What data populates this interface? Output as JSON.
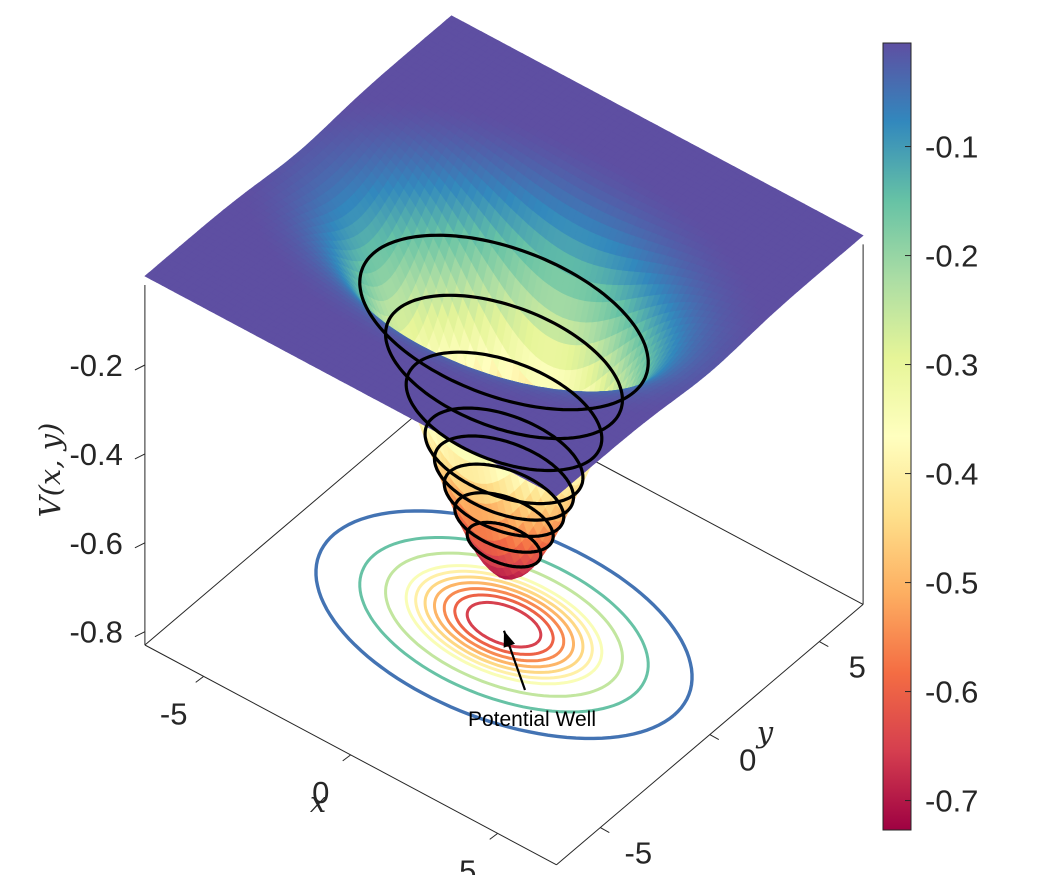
{
  "chart_data": {
    "type": "surface3d",
    "title": "",
    "function": "Gaussian potential well",
    "xlabel": "x",
    "ylabel": "y",
    "zlabel": "V(x, y)",
    "xlim": [
      -7,
      7
    ],
    "ylim": [
      -7,
      7
    ],
    "zlim": [
      -0.83,
      -0.02
    ],
    "x_ticks": [
      -5,
      0,
      5
    ],
    "y_ticks": [
      -5,
      0,
      5
    ],
    "z_ticks": [
      -0.8,
      -0.6,
      -0.4,
      -0.2
    ],
    "x_tick_labels": [
      "-5",
      "0",
      "5"
    ],
    "y_tick_labels": [
      "-5",
      "0",
      "5"
    ],
    "z_tick_labels": [
      "-0.8",
      "-0.6",
      "-0.4",
      "-0.2"
    ],
    "well_depth": -0.72,
    "well_width_x": 2.5,
    "well_width_y": 1.6,
    "surface_contour_levels": [
      -0.15,
      -0.25,
      -0.35,
      -0.45,
      -0.5,
      -0.55,
      -0.6,
      -0.65
    ],
    "floor_contour_levels": [
      -0.05,
      -0.15,
      -0.25,
      -0.35,
      -0.4,
      -0.45,
      -0.5,
      -0.55,
      -0.6,
      -0.65
    ],
    "colormap": "spectral",
    "colormap_stops": [
      "#9e0142",
      "#d53e4f",
      "#f46d43",
      "#fdae61",
      "#fee08b",
      "#ffffbf",
      "#e6f598",
      "#abdda4",
      "#66c2a5",
      "#3288bd",
      "#5e4fa2"
    ],
    "colorbar": {
      "range": [
        -0.727,
        -0.005
      ],
      "ticks": [
        -0.7,
        -0.6,
        -0.5,
        -0.4,
        -0.3,
        -0.2,
        -0.1
      ],
      "tick_labels": [
        "-0.7",
        "-0.6",
        "-0.5",
        "-0.4",
        "-0.3",
        "-0.2",
        "-0.1"
      ],
      "placement": "right"
    },
    "annotation": {
      "text": "Potential Well",
      "points_to": [
        0,
        0
      ]
    }
  }
}
